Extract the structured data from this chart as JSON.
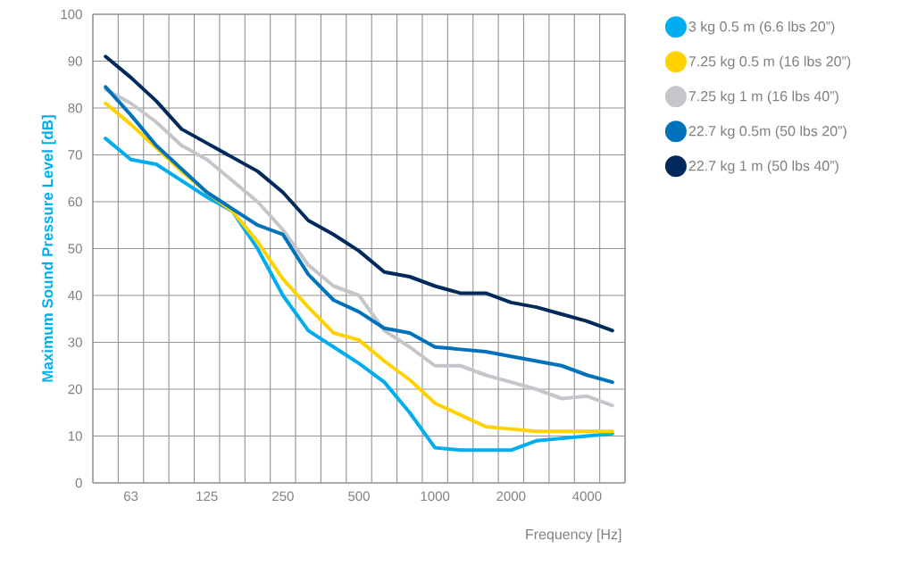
{
  "chart_data": {
    "type": "line",
    "xlabel": "Frequency [Hz]",
    "ylabel": "Maximum Sound Pressure Level [dB]",
    "categories": [
      null,
      "63",
      null,
      null,
      "125",
      null,
      null,
      "250",
      null,
      null,
      "500",
      null,
      null,
      "1000",
      null,
      null,
      "2000",
      null,
      null,
      "4000",
      null
    ],
    "ylim": [
      0,
      100
    ],
    "yticks": [
      0,
      10,
      20,
      30,
      40,
      50,
      60,
      70,
      80,
      90,
      100
    ],
    "grid": true,
    "legend": "right",
    "marker": "none",
    "line_style": "solid",
    "series": [
      {
        "name": "3 kg 0.5 m (6.6 lbs 20”)",
        "color": "#00aeef",
        "values": [
          73.5,
          69,
          68,
          64.5,
          61,
          58,
          50,
          40,
          32.5,
          29,
          25.5,
          21.5,
          15,
          7.5,
          7,
          7,
          7,
          9,
          9.5,
          10,
          10.5
        ]
      },
      {
        "name": "7.25 kg 0.5 m (16 lbs 20”)",
        "color": "#ffd200",
        "values": [
          81,
          76.5,
          71.5,
          66.5,
          62,
          58,
          51.5,
          43.5,
          37.5,
          32,
          30.5,
          26,
          22,
          17,
          14.5,
          12,
          11.5,
          11,
          11,
          11,
          11
        ]
      },
      {
        "name": "7.25 kg 1 m (16 lbs 40”)",
        "color": "#c4c6cb",
        "values": [
          84,
          81,
          77,
          72,
          69,
          64.5,
          60,
          54,
          46.5,
          42,
          40,
          32.5,
          29,
          25,
          25,
          23,
          21.5,
          20,
          18,
          18.5,
          16.5
        ]
      },
      {
        "name": "22.7 kg 0.5m (50 lbs 20”)",
        "color": "#0072bc",
        "values": [
          84.5,
          78.5,
          72,
          67,
          62,
          58.5,
          55,
          53,
          44.5,
          39,
          36.5,
          33,
          32,
          29,
          28.5,
          28,
          27,
          26,
          25,
          23,
          21.5
        ]
      },
      {
        "name": "22.7 kg 1 m (50 lbs 40”)",
        "color": "#002a5c",
        "values": [
          91,
          86.5,
          81.5,
          75.5,
          72.5,
          69.5,
          66.5,
          62,
          56,
          53,
          49.5,
          45,
          44,
          42,
          40.5,
          40.5,
          38.5,
          37.5,
          36,
          34.5,
          32.5
        ]
      }
    ]
  }
}
